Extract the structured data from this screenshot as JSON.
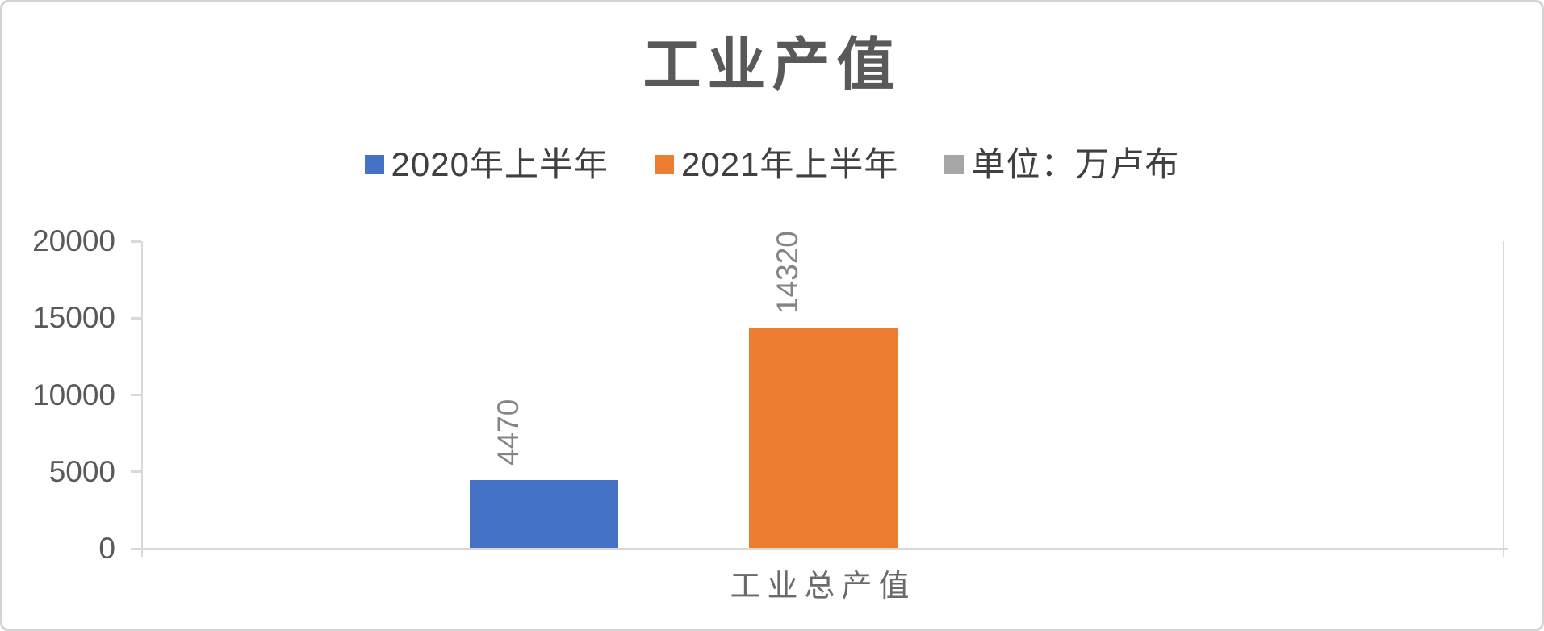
{
  "chart_data": {
    "type": "bar",
    "title": "工业产值",
    "categories": [
      "工业总产值"
    ],
    "series": [
      {
        "name": "2020年上半年",
        "values": [
          4470
        ],
        "color": "#4472C4"
      },
      {
        "name": "2021年上半年",
        "values": [
          14320
        ],
        "color": "#ED7D31"
      },
      {
        "name": "单位：万卢布",
        "values": [
          null
        ],
        "color": "#A6A6A6"
      }
    ],
    "ylim": [
      0,
      20000
    ],
    "yticks": [
      0,
      5000,
      10000,
      15000,
      20000
    ],
    "legend_position": "top",
    "grid": false,
    "data_labels": true,
    "data_label_rotation": -90,
    "colors": {
      "axis_line": "#D9D9D9",
      "title_text": "#595959",
      "axis_text": "#595959",
      "legend_text": "#404040",
      "data_label_text": "#848484",
      "category_text": "#6A6A6A"
    }
  }
}
